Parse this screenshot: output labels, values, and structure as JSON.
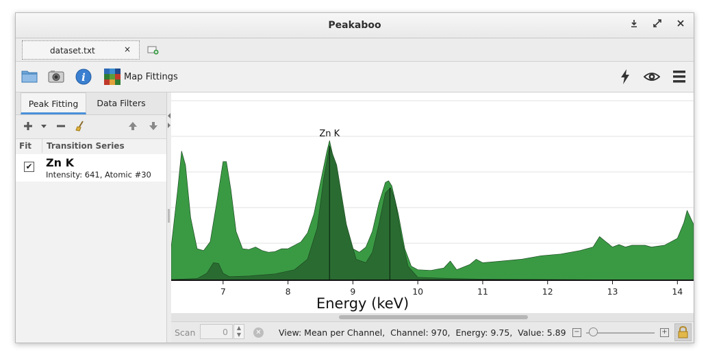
{
  "window": {
    "title": "Peakaboo",
    "controls": [
      "minimize-icon",
      "maximize-icon",
      "close-icon"
    ]
  },
  "tabs": {
    "document": "dataset.txt",
    "close_glyph": "×"
  },
  "toolbar": {
    "icons": [
      "folder-icon",
      "camera-icon",
      "info-icon",
      "map-icon",
      "lightning-icon",
      "eye-icon",
      "menu-icon"
    ],
    "map_label": "Map Fittings"
  },
  "sidebar": {
    "tabs": [
      "Peak Fitting",
      "Data Filters"
    ],
    "active_tab": "Peak Fitting",
    "columns": {
      "fit": "Fit",
      "series": "Transition Series"
    },
    "rows": [
      {
        "checked": true,
        "name": "Zn K",
        "detail": "Intensity: 641, Atomic #30"
      }
    ]
  },
  "chart_data": {
    "type": "area",
    "xlabel": "Energy (keV)",
    "ylabel": "",
    "xlim": [
      6.2,
      14.25
    ],
    "x_ticks": [
      7,
      8,
      9,
      10,
      11,
      12,
      13,
      14
    ],
    "grid": true,
    "annotations": [
      {
        "text": "Zn K",
        "x": 8.64
      }
    ],
    "series": [
      {
        "role": "spectrum",
        "color": "#3a9a44",
        "x": [
          6.2,
          6.3,
          6.36,
          6.42,
          6.5,
          6.6,
          6.7,
          6.8,
          6.9,
          7.0,
          7.05,
          7.12,
          7.2,
          7.3,
          7.4,
          7.5,
          7.6,
          7.7,
          7.8,
          7.9,
          8.0,
          8.1,
          8.2,
          8.3,
          8.4,
          8.5,
          8.6,
          8.64,
          8.7,
          8.8,
          8.9,
          9.0,
          9.1,
          9.2,
          9.3,
          9.4,
          9.5,
          9.55,
          9.6,
          9.7,
          9.8,
          9.9,
          10.0,
          10.2,
          10.4,
          10.5,
          10.6,
          10.8,
          10.9,
          11.0,
          11.3,
          11.6,
          11.9,
          12.2,
          12.5,
          12.7,
          12.8,
          12.9,
          13.0,
          13.1,
          13.2,
          13.3,
          13.5,
          13.6,
          13.8,
          14.0,
          14.1,
          14.15,
          14.25
        ],
        "y": [
          0.95,
          2.6,
          3.7,
          3.3,
          1.8,
          0.9,
          0.85,
          1.1,
          2.2,
          3.4,
          3.4,
          2.6,
          1.4,
          0.9,
          0.88,
          0.95,
          0.85,
          0.8,
          0.82,
          0.9,
          0.9,
          1.0,
          1.1,
          1.35,
          1.9,
          2.8,
          3.7,
          4.0,
          3.5,
          2.2,
          1.2,
          0.9,
          0.8,
          0.95,
          1.4,
          2.2,
          2.8,
          2.85,
          2.7,
          1.9,
          0.9,
          0.4,
          0.3,
          0.28,
          0.35,
          0.55,
          0.3,
          0.45,
          0.6,
          0.5,
          0.55,
          0.6,
          0.7,
          0.75,
          0.85,
          0.95,
          1.25,
          1.1,
          0.95,
          1.02,
          0.95,
          1.0,
          1.0,
          0.95,
          1.0,
          1.2,
          1.65,
          2.0,
          1.6
        ]
      },
      {
        "role": "fit",
        "color": "#2a6b31",
        "x": [
          6.2,
          6.6,
          6.75,
          6.85,
          6.93,
          7.0,
          7.1,
          7.4,
          7.8,
          8.1,
          8.3,
          8.45,
          8.55,
          8.64,
          8.75,
          8.9,
          9.05,
          9.2,
          9.3,
          9.4,
          9.5,
          9.58,
          9.65,
          9.75,
          9.85,
          10.0,
          10.5,
          11.0,
          12.0,
          13.0,
          14.25
        ],
        "y": [
          0.02,
          0.05,
          0.2,
          0.5,
          0.48,
          0.2,
          0.1,
          0.12,
          0.18,
          0.3,
          0.6,
          1.5,
          2.9,
          3.85,
          3.3,
          1.6,
          0.6,
          0.5,
          0.8,
          1.6,
          2.5,
          2.65,
          2.3,
          1.2,
          0.4,
          0.08,
          0.05,
          0.03,
          0.02,
          0.01,
          0.0
        ]
      }
    ],
    "markers": [
      {
        "x": 8.64
      },
      {
        "x": 9.57
      }
    ]
  },
  "statusbar": {
    "scan_label": "Scan",
    "scan_value": "0",
    "view_text": "View: Mean per Channel,  Channel: 970,  Energy: 9.75,  Value: 5.89",
    "zoom_level": 0.1
  },
  "colors": {
    "accent": "#4a90d9",
    "spectrum": "#3a9a44",
    "fit": "#2a6b31"
  }
}
